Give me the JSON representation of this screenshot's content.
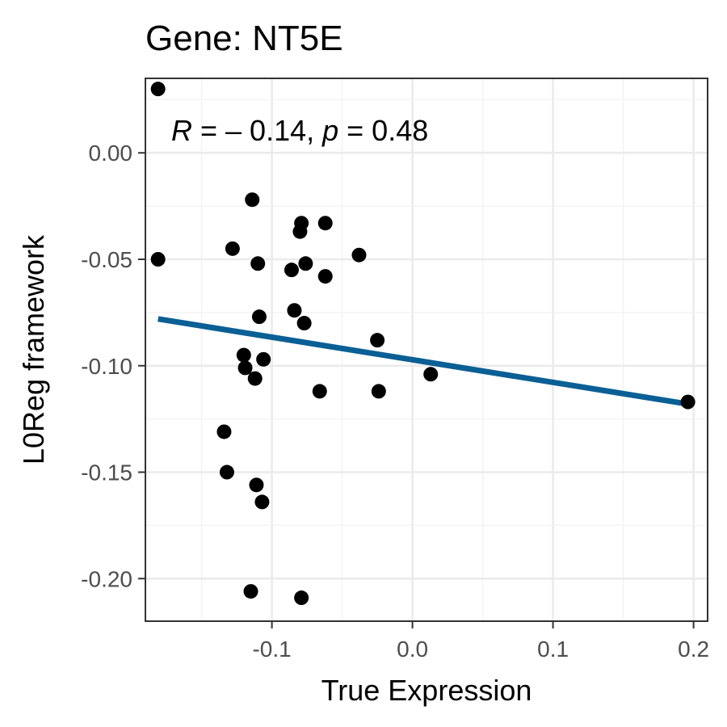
{
  "chart_data": {
    "type": "scatter",
    "title": "Gene: NT5E",
    "xlabel": "True Expression",
    "ylabel": "L0Reg framework",
    "xlim": [
      -0.19,
      0.21
    ],
    "ylim": [
      -0.22,
      0.035
    ],
    "x_ticks": [
      -0.1,
      0.0,
      0.1,
      0.2
    ],
    "x_tick_labels": [
      "-0.1",
      "0.0",
      "0.1",
      "0.2"
    ],
    "y_ticks": [
      0.0,
      -0.05,
      -0.1,
      -0.15,
      -0.2
    ],
    "y_tick_labels": [
      "0.00",
      "-0.05",
      "-0.10",
      "-0.15",
      "-0.20"
    ],
    "grid": true,
    "annotation": {
      "r_symbol": "R",
      "r_value": " = – 0.14, ",
      "p_symbol": "p",
      "p_value": " = 0.48"
    },
    "points": [
      {
        "x": -0.181,
        "y": 0.03
      },
      {
        "x": -0.181,
        "y": -0.05
      },
      {
        "x": -0.114,
        "y": -0.022
      },
      {
        "x": -0.128,
        "y": -0.045
      },
      {
        "x": -0.11,
        "y": -0.052
      },
      {
        "x": -0.079,
        "y": -0.033
      },
      {
        "x": -0.08,
        "y": -0.037
      },
      {
        "x": -0.062,
        "y": -0.033
      },
      {
        "x": -0.038,
        "y": -0.048
      },
      {
        "x": -0.086,
        "y": -0.055
      },
      {
        "x": -0.076,
        "y": -0.052
      },
      {
        "x": -0.062,
        "y": -0.058
      },
      {
        "x": -0.084,
        "y": -0.074
      },
      {
        "x": -0.109,
        "y": -0.077
      },
      {
        "x": -0.077,
        "y": -0.08
      },
      {
        "x": -0.025,
        "y": -0.088
      },
      {
        "x": -0.12,
        "y": -0.095
      },
      {
        "x": -0.106,
        "y": -0.097
      },
      {
        "x": -0.119,
        "y": -0.101
      },
      {
        "x": -0.112,
        "y": -0.106
      },
      {
        "x": -0.066,
        "y": -0.112
      },
      {
        "x": -0.024,
        "y": -0.112
      },
      {
        "x": 0.013,
        "y": -0.104
      },
      {
        "x": 0.196,
        "y": -0.117
      },
      {
        "x": -0.134,
        "y": -0.131
      },
      {
        "x": -0.132,
        "y": -0.15
      },
      {
        "x": -0.111,
        "y": -0.156
      },
      {
        "x": -0.107,
        "y": -0.164
      },
      {
        "x": -0.115,
        "y": -0.206
      },
      {
        "x": -0.079,
        "y": -0.209
      }
    ],
    "fit_line": {
      "x": [
        -0.181,
        0.196
      ],
      "y": [
        -0.078,
        -0.118
      ],
      "color": "#0a5f95"
    },
    "point_color": "#000000"
  }
}
